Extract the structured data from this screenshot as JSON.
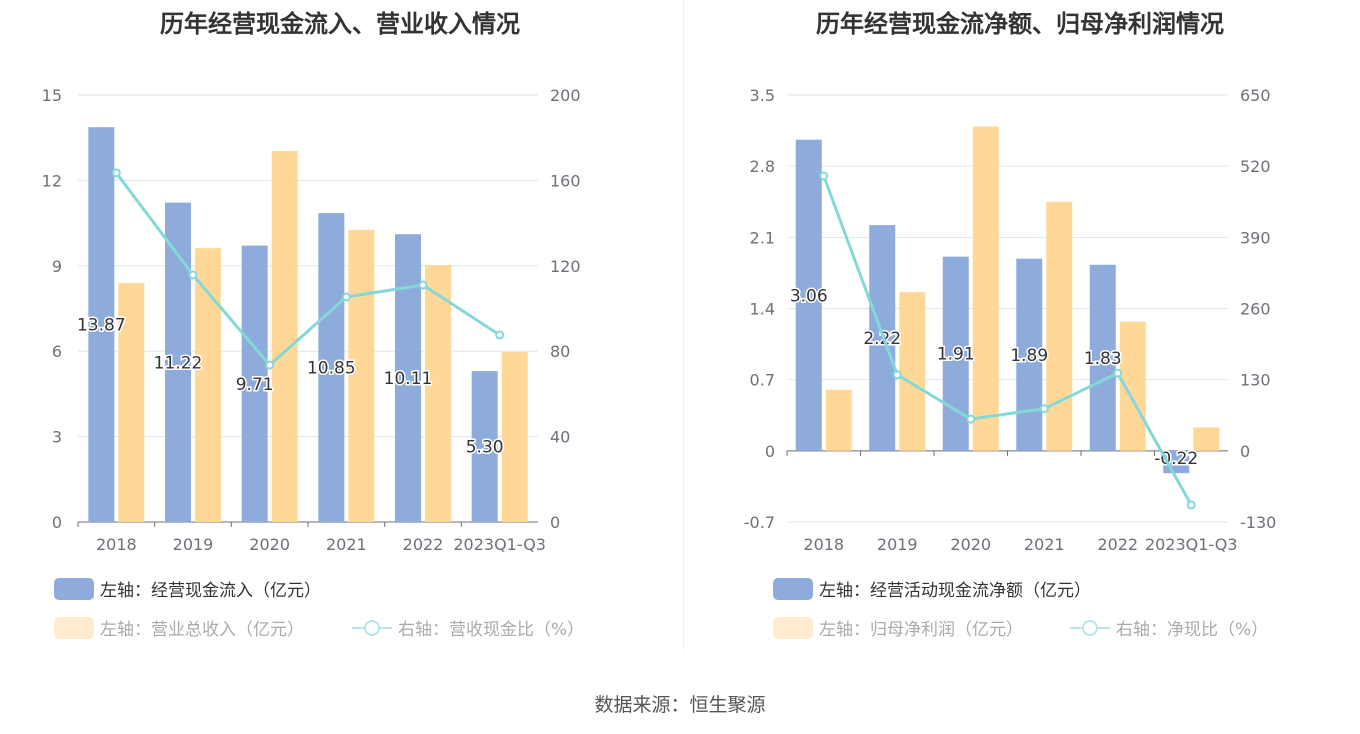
{
  "source": "数据来源：恒生聚源",
  "colors": {
    "bar1": "#8eacdb",
    "bar2": "#ffd898",
    "line": "#84d8d8",
    "bar2_legend": "#ffecd0"
  },
  "chart_data": [
    {
      "type": "bar",
      "title": "历年经营现金流入、营业收入情况",
      "categories": [
        "2018",
        "2019",
        "2020",
        "2021",
        "2022",
        "2023Q1-Q3"
      ],
      "ylim_left": [
        0,
        15
      ],
      "yticks_left": [
        0,
        3,
        6,
        9,
        12,
        15
      ],
      "ylim_right": [
        0,
        200
      ],
      "yticks_right": [
        0,
        40,
        80,
        120,
        160,
        200
      ],
      "grid": true,
      "series": [
        {
          "name": "左轴：经营现金流入（亿元）",
          "type": "bar",
          "axis": "left",
          "values": [
            13.87,
            11.22,
            9.71,
            10.85,
            10.11,
            5.3
          ],
          "labels": [
            "13.87",
            "11.22",
            "9.71",
            "10.85",
            "10.11",
            "5.30"
          ]
        },
        {
          "name": "左轴：营业总收入（亿元）",
          "type": "bar",
          "axis": "left",
          "values": [
            8.39,
            9.62,
            13.03,
            10.26,
            9.03,
            5.97
          ]
        },
        {
          "name": "右轴：营收现金比（%）",
          "type": "line",
          "axis": "right",
          "values": [
            163.5,
            115.7,
            73.5,
            105.4,
            111.0,
            87.6
          ]
        }
      ],
      "legend_position": "bottom-left"
    },
    {
      "type": "bar",
      "title": "历年经营现金流净额、归母净利润情况",
      "categories": [
        "2018",
        "2019",
        "2020",
        "2021",
        "2022",
        "2023Q1-Q3"
      ],
      "ylim_left": [
        -0.7,
        3.5
      ],
      "yticks_left": [
        "-0.7",
        "0",
        "0.7",
        "1.4",
        "2.1",
        "2.8",
        "3.5"
      ],
      "ylim_right": [
        -130,
        650
      ],
      "yticks_right": [
        "-130",
        "0",
        "130",
        "260",
        "390",
        "520",
        "650"
      ],
      "grid": true,
      "series": [
        {
          "name": "左轴：经营活动现金流净额（亿元）",
          "type": "bar",
          "axis": "left",
          "values": [
            3.06,
            2.22,
            1.91,
            1.89,
            1.83,
            -0.22
          ],
          "labels": [
            "3.06",
            "2.22",
            "1.91",
            "1.89",
            "1.83",
            "-0.22"
          ]
        },
        {
          "name": "左轴：归母净利润（亿元）",
          "type": "bar",
          "axis": "left",
          "values": [
            0.6,
            1.56,
            3.19,
            2.45,
            1.27,
            0.23
          ]
        },
        {
          "name": "右轴：净现比（%）",
          "type": "line",
          "axis": "right",
          "values": [
            502,
            139,
            58,
            77,
            142,
            -99
          ]
        }
      ],
      "legend_position": "bottom-left"
    }
  ]
}
